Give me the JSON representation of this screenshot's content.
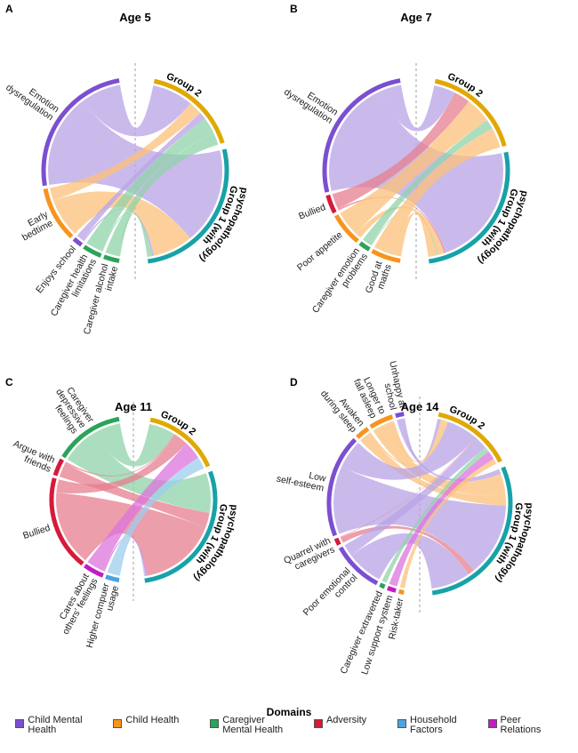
{
  "domain_colors": {
    "CMH": "#7b4fd0",
    "CH": "#f7941d",
    "CMGH": "#2ba35b",
    "ADV": "#d7193a",
    "HH": "#4ba3df",
    "PEER": "#c21cc2"
  },
  "chord_fill": {
    "CMH": "#b8a3e6",
    "CH": "#fcc07a",
    "CMGH": "#8fd3a8",
    "ADV": "#e77d8f",
    "HH": "#9dcdee",
    "PEER": "#dc73dc"
  },
  "group_colors": {
    "group2": "#e0a800",
    "group1": "#17a2a8"
  },
  "group_labels": {
    "group2": "Group 2",
    "group1_line1": "Group 1 (with",
    "group1_line2": "psychopathology)"
  },
  "panels": [
    {
      "letter": "A",
      "title": "Age 5",
      "factors": [
        {
          "label": "Emotion\ndysregulation",
          "domain": "CMH",
          "weight": 90,
          "to_group1": 0.7
        },
        {
          "label": "Early\nbedtime",
          "domain": "CH",
          "weight": 35,
          "to_group1": 0.75
        },
        {
          "label": "Enjoys school",
          "domain": "CMH",
          "weight": 6,
          "to_group1": 0.2
        },
        {
          "label": "Caregiver health\nlimitations",
          "domain": "CMGH",
          "weight": 12,
          "to_group1": 0.1
        },
        {
          "label": "Caregiver alcohol\nintake",
          "domain": "CMGH",
          "weight": 10,
          "to_group1": 0.2
        }
      ]
    },
    {
      "letter": "B",
      "title": "Age 7",
      "factors": [
        {
          "label": "Emotion\ndysregulation",
          "domain": "CMH",
          "weight": 80,
          "to_group1": 0.85
        },
        {
          "label": "Bullied",
          "domain": "ADV",
          "weight": 10,
          "to_group1": 0.1
        },
        {
          "label": "Poor appetite",
          "domain": "CH",
          "weight": 18,
          "to_group1": 0.2
        },
        {
          "label": "Caregiver emotion\nproblems",
          "domain": "CMGH",
          "weight": 6,
          "to_group1": 0.1
        },
        {
          "label": "Good at\nmaths",
          "domain": "CH",
          "weight": 16,
          "to_group1": 0.3
        }
      ]
    },
    {
      "letter": "C",
      "title": "Age 11",
      "factors": [
        {
          "label": "Caregiver\ndepressive\nfeelings",
          "domain": "CMGH",
          "weight": 40,
          "to_group1": 0.6
        },
        {
          "label": "Argue with\nfriends",
          "domain": "ADV",
          "weight": 10,
          "to_group1": 0.9
        },
        {
          "label": "Bullied",
          "domain": "ADV",
          "weight": 55,
          "to_group1": 0.85
        },
        {
          "label": "Cares about\nothers' feelings",
          "domain": "PEER",
          "weight": 12,
          "to_group1": 0.1
        },
        {
          "label": "Higher compuer\nusage",
          "domain": "HH",
          "weight": 8,
          "to_group1": 0.1
        }
      ]
    },
    {
      "letter": "D",
      "title": "Age 14",
      "factors": [
        {
          "label": "Unhappy at\nschool",
          "domain": "CMH",
          "weight": 5,
          "to_group1": 0.6
        },
        {
          "label": "Longer to\nfall asleep",
          "domain": "CH",
          "weight": 14,
          "to_group1": 0.8
        },
        {
          "label": "Awaken\nduring sleep",
          "domain": "CH",
          "weight": 8,
          "to_group1": 0.85
        },
        {
          "label": "Low\nself-esteem",
          "domain": "CMH",
          "weight": 60,
          "to_group1": 0.7
        },
        {
          "label": "Quarrel with\ncaregivers",
          "domain": "ADV",
          "weight": 4,
          "to_group1": 0.9
        },
        {
          "label": "Poor emotional\ncontrol",
          "domain": "CMH",
          "weight": 30,
          "to_group1": 0.75
        },
        {
          "label": "Caregiver extraverted",
          "domain": "CMGH",
          "weight": 3,
          "to_group1": 0.0
        },
        {
          "label": "Low support system",
          "domain": "PEER",
          "weight": 5,
          "to_group1": 0.0
        },
        {
          "label": "Risk-taker",
          "domain": "CH",
          "weight": 3,
          "to_group1": 0.0
        }
      ]
    }
  ],
  "legend": {
    "title": "Domains",
    "items": [
      {
        "label": "Child Mental\nHealth",
        "domain": "CMH"
      },
      {
        "label": "Child Health",
        "domain": "CH"
      },
      {
        "label": "Caregiver\nMental Health",
        "domain": "CMGH"
      },
      {
        "label": "Adversity",
        "domain": "ADV"
      },
      {
        "label": "Household\nFactors",
        "domain": "HH"
      },
      {
        "label": "Peer Relations",
        "domain": "PEER"
      }
    ]
  }
}
